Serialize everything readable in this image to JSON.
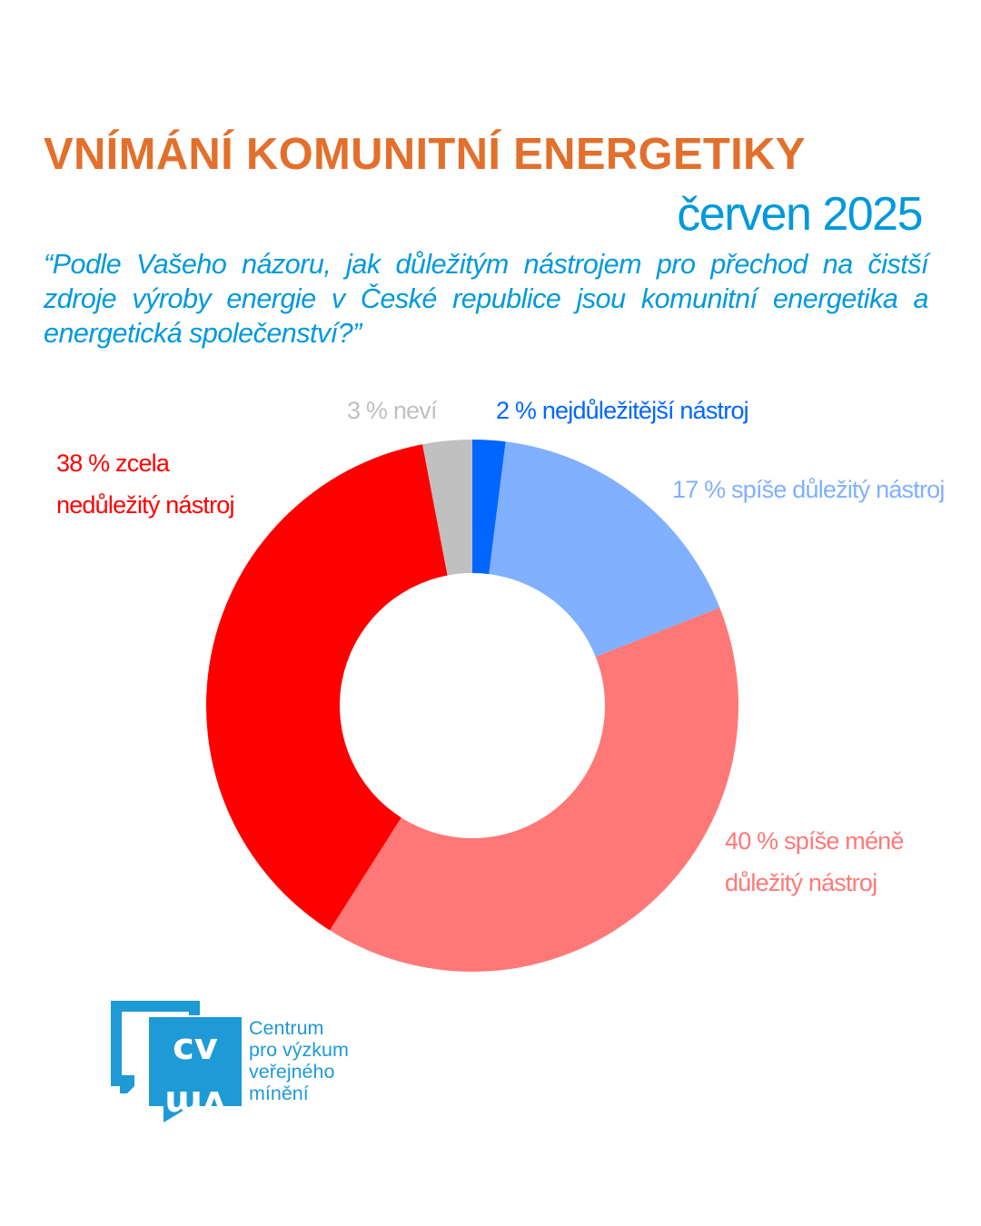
{
  "header": {
    "title": "VNÍMÁNÍ KOMUNITNÍ ENERGETIKY",
    "date": "červen 2025",
    "question": "“Podle Vašeho názoru, jak důležitým nástrojem pro přechod na čistší zdroje výroby energie v České republice jsou komunitní energetika a energetická společenství?”"
  },
  "chart_data": {
    "type": "pie",
    "donut": true,
    "title": "VNÍMÁNÍ KOMUNITNÍ ENERGETIKY",
    "slices": [
      {
        "name": "nejdůležitější nástroj",
        "value": 2,
        "label": "2 % nejdůležitější nástroj",
        "color": "#0066ff"
      },
      {
        "name": "spíše důležitý nástroj",
        "value": 17,
        "label": "17 % spíše důležitý nástroj",
        "color": "#80b0ff"
      },
      {
        "name": "spíše méně důležitý nástroj",
        "value": 40,
        "label_lines": [
          "40 % spíše méně",
          "důležitý nástroj"
        ],
        "color": "#ff7878"
      },
      {
        "name": "zcela nedůležitý nástroj",
        "value": 38,
        "label_lines": [
          "38 % zcela",
          "nedůležitý nástroj"
        ],
        "color": "#ff0000"
      },
      {
        "name": "neví",
        "value": 3,
        "label": "3 % neví",
        "color": "#c0c0c0"
      }
    ]
  },
  "logo": {
    "mark": "CVVM",
    "lines": [
      "Centrum",
      "pro výzkum",
      "veřejného",
      "mínění"
    ],
    "color": "#1e9ad6"
  }
}
